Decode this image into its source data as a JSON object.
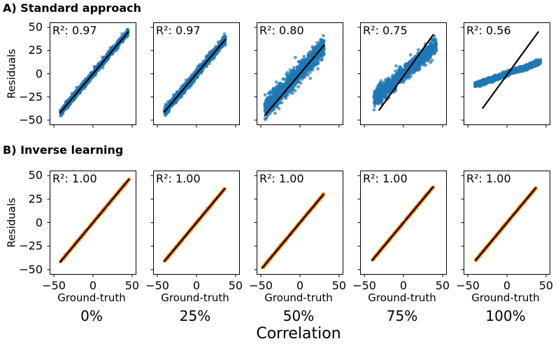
{
  "titles": {
    "row_a": "A) Standard approach",
    "row_b": "B) Inverse learning"
  },
  "colors": {
    "standard_points": "#1f77b4",
    "inverse_points": "#ff7f0e",
    "fit_line": "#000000",
    "axis": "#000000",
    "background": "#ffffff"
  },
  "chart_data": {
    "type": "scatter",
    "ylabel": "Residuals",
    "xlabel": "Ground-truth",
    "xlabel_group": "Correlation",
    "xlim": [
      -55,
      55
    ],
    "ylim": [
      -55,
      55
    ],
    "grid": false,
    "x_ticks": [
      {
        "value": -50,
        "label": "−50"
      },
      {
        "value": 0,
        "label": "0"
      },
      {
        "value": 50,
        "label": "50"
      }
    ],
    "y_ticks": [
      {
        "value": 50,
        "label": "50"
      },
      {
        "value": 25,
        "label": "25"
      },
      {
        "value": 0,
        "label": "0"
      },
      {
        "value": -25,
        "label": "−25"
      },
      {
        "value": -50,
        "label": "−50"
      }
    ],
    "columns": [
      {
        "label": "0%"
      },
      {
        "label": "25%"
      },
      {
        "label": "50%"
      },
      {
        "label": "75%"
      },
      {
        "label": "100%"
      }
    ],
    "rows": [
      {
        "name": "standard",
        "point_color": "#1f77b4",
        "point_opacity": 0.7,
        "panels": [
          {
            "r2": 0.97,
            "r2_label": "R²: 0.97",
            "line": {
              "x1": -42,
              "y1": -42,
              "x2": 45,
              "y2": 45
            },
            "cloud": {
              "n": 1000,
              "x_range": [
                -42,
                45
              ],
              "slope": 1,
              "intercept": 0,
              "noise_sd": 1.8,
              "seed": 101
            }
          },
          {
            "r2": 0.97,
            "r2_label": "R²: 0.97",
            "line": {
              "x1": -41,
              "y1": -41,
              "x2": 37,
              "y2": 37
            },
            "cloud": {
              "n": 1000,
              "x_range": [
                -41,
                37
              ],
              "slope": 1,
              "intercept": 0,
              "noise_sd": 2.3,
              "seed": 102
            }
          },
          {
            "r2": 0.8,
            "r2_label": "R²: 0.80",
            "line": {
              "x1": -45,
              "y1": -45,
              "x2": 31,
              "y2": 31
            },
            "cloud": {
              "n": 1000,
              "x_range": [
                -45,
                31
              ],
              "slope": 0.88,
              "intercept": 2,
              "noise_sd": 5.5,
              "seed": 103
            }
          },
          {
            "r2": 0.75,
            "r2_label": "R²: 0.75",
            "line": {
              "x1": -31,
              "y1": -39,
              "x2": 38,
              "y2": 42
            },
            "cloud": {
              "n": 1000,
              "x_range": [
                -38,
                42
              ],
              "slope": 0.72,
              "intercept": 0,
              "noise_sd": 4.5,
              "seed": 104
            }
          },
          {
            "r2": 0.56,
            "r2_label": "R²: 0.56",
            "line": {
              "x1": -31,
              "y1": -37,
              "x2": 40,
              "y2": 45
            },
            "cloud": {
              "n": 1000,
              "x_range": [
                -41,
                43
              ],
              "slope": 0.3,
              "intercept": 0,
              "noise_sd": 1.3,
              "seed": 105
            }
          }
        ]
      },
      {
        "name": "inverse",
        "point_color": "#ff7f0e",
        "point_opacity": 1,
        "panels": [
          {
            "r2": 1.0,
            "r2_label": "R²: 1.00",
            "line": {
              "x1": -42,
              "y1": -42,
              "x2": 46,
              "y2": 46
            },
            "cloud": {
              "n": 300,
              "x_range": [
                -42,
                46
              ],
              "slope": 1,
              "intercept": 0,
              "noise_sd": 0.3,
              "seed": 201
            }
          },
          {
            "r2": 1.0,
            "r2_label": "R²: 1.00",
            "line": {
              "x1": -41,
              "y1": -41,
              "x2": 36,
              "y2": 36
            },
            "cloud": {
              "n": 300,
              "x_range": [
                -41,
                36
              ],
              "slope": 1,
              "intercept": 0,
              "noise_sd": 0.3,
              "seed": 202
            }
          },
          {
            "r2": 1.0,
            "r2_label": "R²: 1.00",
            "line": {
              "x1": -48,
              "y1": -48,
              "x2": 30,
              "y2": 30
            },
            "cloud": {
              "n": 300,
              "x_range": [
                -48,
                30
              ],
              "slope": 1,
              "intercept": 0,
              "noise_sd": 0.3,
              "seed": 203
            }
          },
          {
            "r2": 1.0,
            "r2_label": "R²: 1.00",
            "line": {
              "x1": -40,
              "y1": -40,
              "x2": 38,
              "y2": 38
            },
            "cloud": {
              "n": 300,
              "x_range": [
                -40,
                38
              ],
              "slope": 1,
              "intercept": 0,
              "noise_sd": 0.3,
              "seed": 204
            }
          },
          {
            "r2": 1.0,
            "r2_label": "R²: 1.00",
            "line": {
              "x1": -40,
              "y1": -40,
              "x2": 37,
              "y2": 37
            },
            "cloud": {
              "n": 300,
              "x_range": [
                -40,
                37
              ],
              "slope": 1,
              "intercept": 0,
              "noise_sd": 0.3,
              "seed": 205
            }
          }
        ]
      }
    ]
  }
}
